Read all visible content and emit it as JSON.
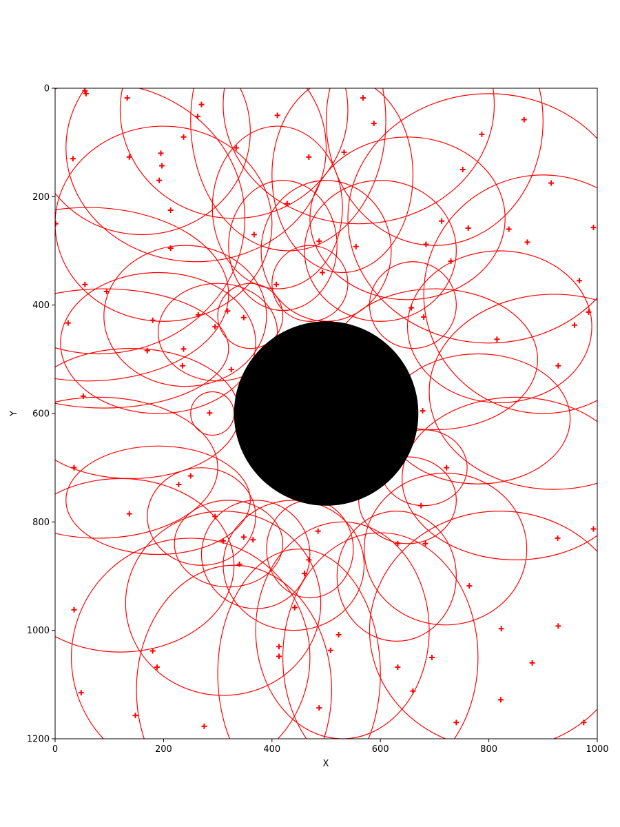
{
  "chart_data": {
    "type": "scatter",
    "title": "",
    "xlabel": "X",
    "ylabel": "Y",
    "xlim": [
      0,
      1000
    ],
    "ylim": [
      1200,
      0
    ],
    "y_inverted": true,
    "grid": false,
    "legend": "none",
    "xticks": [
      "0",
      "200",
      "400",
      "600",
      "800",
      "1000"
    ],
    "yticks": [
      "0",
      "200",
      "400",
      "600",
      "800",
      "1000",
      "1200"
    ],
    "central_disk": {
      "cx": 500,
      "cy": 600,
      "r": 170,
      "color": "#000000"
    },
    "marker": "+",
    "color": "#ff0000",
    "points": [
      {
        "x": 55,
        "y": 5
      },
      {
        "x": 57,
        "y": 10
      },
      {
        "x": 133,
        "y": 18
      },
      {
        "x": 270,
        "y": 30
      },
      {
        "x": 568,
        "y": 18
      },
      {
        "x": 263,
        "y": 52
      },
      {
        "x": 410,
        "y": 50
      },
      {
        "x": 588,
        "y": 65
      },
      {
        "x": 865,
        "y": 58
      },
      {
        "x": 787,
        "y": 85
      },
      {
        "x": 237,
        "y": 90
      },
      {
        "x": 334,
        "y": 110
      },
      {
        "x": 533,
        "y": 118
      },
      {
        "x": 195,
        "y": 120
      },
      {
        "x": 33,
        "y": 130
      },
      {
        "x": 137,
        "y": 127
      },
      {
        "x": 468,
        "y": 127
      },
      {
        "x": 197,
        "y": 143
      },
      {
        "x": 752,
        "y": 150
      },
      {
        "x": 192,
        "y": 170
      },
      {
        "x": 915,
        "y": 175
      },
      {
        "x": 428,
        "y": 213
      },
      {
        "x": 213,
        "y": 225
      },
      {
        "x": 1,
        "y": 250
      },
      {
        "x": 713,
        "y": 245
      },
      {
        "x": 762,
        "y": 258
      },
      {
        "x": 837,
        "y": 260
      },
      {
        "x": 993,
        "y": 257
      },
      {
        "x": 367,
        "y": 270
      },
      {
        "x": 487,
        "y": 282
      },
      {
        "x": 871,
        "y": 284
      },
      {
        "x": 684,
        "y": 288
      },
      {
        "x": 555,
        "y": 292
      },
      {
        "x": 213,
        "y": 295
      },
      {
        "x": 730,
        "y": 319
      },
      {
        "x": 493,
        "y": 340
      },
      {
        "x": 967,
        "y": 355
      },
      {
        "x": 55,
        "y": 362
      },
      {
        "x": 408,
        "y": 362
      },
      {
        "x": 95,
        "y": 375
      },
      {
        "x": 657,
        "y": 405
      },
      {
        "x": 318,
        "y": 411
      },
      {
        "x": 984,
        "y": 413
      },
      {
        "x": 264,
        "y": 418
      },
      {
        "x": 680,
        "y": 422
      },
      {
        "x": 348,
        "y": 423
      },
      {
        "x": 180,
        "y": 428
      },
      {
        "x": 24,
        "y": 433
      },
      {
        "x": 958,
        "y": 437
      },
      {
        "x": 295,
        "y": 440
      },
      {
        "x": 815,
        "y": 463
      },
      {
        "x": 237,
        "y": 481
      },
      {
        "x": 170,
        "y": 484
      },
      {
        "x": 235,
        "y": 512
      },
      {
        "x": 928,
        "y": 512
      },
      {
        "x": 325,
        "y": 519
      },
      {
        "x": 52,
        "y": 568
      },
      {
        "x": 678,
        "y": 595
      },
      {
        "x": 285,
        "y": 599
      },
      {
        "x": 35,
        "y": 700
      },
      {
        "x": 722,
        "y": 700
      },
      {
        "x": 250,
        "y": 715
      },
      {
        "x": 228,
        "y": 731
      },
      {
        "x": 675,
        "y": 770
      },
      {
        "x": 137,
        "y": 785
      },
      {
        "x": 295,
        "y": 790
      },
      {
        "x": 993,
        "y": 813
      },
      {
        "x": 485,
        "y": 817
      },
      {
        "x": 348,
        "y": 828
      },
      {
        "x": 927,
        "y": 830
      },
      {
        "x": 365,
        "y": 833
      },
      {
        "x": 310,
        "y": 835
      },
      {
        "x": 632,
        "y": 840
      },
      {
        "x": 683,
        "y": 840
      },
      {
        "x": 468,
        "y": 870
      },
      {
        "x": 340,
        "y": 878
      },
      {
        "x": 460,
        "y": 895
      },
      {
        "x": 764,
        "y": 918
      },
      {
        "x": 35,
        "y": 962
      },
      {
        "x": 442,
        "y": 958
      },
      {
        "x": 928,
        "y": 992
      },
      {
        "x": 823,
        "y": 997
      },
      {
        "x": 523,
        "y": 1008
      },
      {
        "x": 413,
        "y": 1030
      },
      {
        "x": 180,
        "y": 1038
      },
      {
        "x": 508,
        "y": 1037
      },
      {
        "x": 413,
        "y": 1048
      },
      {
        "x": 695,
        "y": 1050
      },
      {
        "x": 880,
        "y": 1060
      },
      {
        "x": 188,
        "y": 1068
      },
      {
        "x": 632,
        "y": 1068
      },
      {
        "x": 48,
        "y": 1115
      },
      {
        "x": 660,
        "y": 1112
      },
      {
        "x": 822,
        "y": 1128
      },
      {
        "x": 487,
        "y": 1143
      },
      {
        "x": 148,
        "y": 1157
      },
      {
        "x": 740,
        "y": 1170
      },
      {
        "x": 975,
        "y": 1170
      },
      {
        "x": 275,
        "y": 1177
      }
    ],
    "circles": [
      {
        "cx": 160,
        "cy": 80,
        "rx": 200,
        "ry": 190
      },
      {
        "cx": 260,
        "cy": 110,
        "rx": 240,
        "ry": 210
      },
      {
        "cx": 330,
        "cy": 40,
        "rx": 210,
        "ry": 200
      },
      {
        "cx": 430,
        "cy": 60,
        "rx": 180,
        "ry": 240
      },
      {
        "cx": 560,
        "cy": 30,
        "rx": 250,
        "ry": 220
      },
      {
        "cx": 700,
        "cy": 60,
        "rx": 200,
        "ry": 230
      },
      {
        "cx": 800,
        "cy": 240,
        "rx": 260,
        "ry": 230
      },
      {
        "cx": 650,
        "cy": 240,
        "rx": 180,
        "ry": 150
      },
      {
        "cx": 500,
        "cy": 300,
        "rx": 120,
        "ry": 130
      },
      {
        "cx": 420,
        "cy": 290,
        "rx": 100,
        "ry": 120
      },
      {
        "cx": 470,
        "cy": 360,
        "rx": 70,
        "ry": 70
      },
      {
        "cx": 600,
        "cy": 300,
        "rx": 140,
        "ry": 130
      },
      {
        "cx": 900,
        "cy": 380,
        "rx": 220,
        "ry": 220
      },
      {
        "cx": 820,
        "cy": 440,
        "rx": 170,
        "ry": 140
      },
      {
        "cx": 660,
        "cy": 400,
        "rx": 80,
        "ry": 80
      },
      {
        "cx": 700,
        "cy": 500,
        "rx": 190,
        "ry": 130
      },
      {
        "cx": 920,
        "cy": 560,
        "rx": 230,
        "ry": 180
      },
      {
        "cx": 780,
        "cy": 610,
        "rx": 170,
        "ry": 120
      },
      {
        "cx": 680,
        "cy": 700,
        "rx": 80,
        "ry": 70
      },
      {
        "cx": 850,
        "cy": 720,
        "rx": 210,
        "ry": 150
      },
      {
        "cx": 650,
        "cy": 760,
        "rx": 90,
        "ry": 80
      },
      {
        "cx": 720,
        "cy": 850,
        "rx": 150,
        "ry": 140
      },
      {
        "cx": 630,
        "cy": 900,
        "rx": 110,
        "ry": 120
      },
      {
        "cx": 820,
        "cy": 1000,
        "rx": 240,
        "ry": 220
      },
      {
        "cx": 600,
        "cy": 1050,
        "rx": 180,
        "ry": 230
      },
      {
        "cx": 530,
        "cy": 1000,
        "rx": 160,
        "ry": 200
      },
      {
        "cx": 450,
        "cy": 1080,
        "rx": 150,
        "ry": 230
      },
      {
        "cx": 470,
        "cy": 850,
        "rx": 80,
        "ry": 90
      },
      {
        "cx": 440,
        "cy": 880,
        "rx": 130,
        "ry": 120
      },
      {
        "cx": 370,
        "cy": 860,
        "rx": 100,
        "ry": 100
      },
      {
        "cx": 310,
        "cy": 950,
        "rx": 180,
        "ry": 170
      },
      {
        "cx": 250,
        "cy": 1050,
        "rx": 220,
        "ry": 220
      },
      {
        "cx": 330,
        "cy": 1110,
        "rx": 180,
        "ry": 230
      },
      {
        "cx": 120,
        "cy": 880,
        "rx": 210,
        "ry": 160
      },
      {
        "cx": 190,
        "cy": 760,
        "rx": 170,
        "ry": 100
      },
      {
        "cx": 270,
        "cy": 790,
        "rx": 100,
        "ry": 90
      },
      {
        "cx": 320,
        "cy": 840,
        "rx": 100,
        "ry": 80
      },
      {
        "cx": 80,
        "cy": 700,
        "rx": 220,
        "ry": 130
      },
      {
        "cx": 290,
        "cy": 600,
        "rx": 40,
        "ry": 40
      },
      {
        "cx": 140,
        "cy": 600,
        "rx": 200,
        "ry": 120
      },
      {
        "cx": 190,
        "cy": 470,
        "rx": 180,
        "ry": 130
      },
      {
        "cx": 90,
        "cy": 480,
        "rx": 230,
        "ry": 110
      },
      {
        "cx": 300,
        "cy": 450,
        "rx": 110,
        "ry": 90
      },
      {
        "cx": 240,
        "cy": 420,
        "rx": 150,
        "ry": 130
      },
      {
        "cx": 360,
        "cy": 420,
        "rx": 60,
        "ry": 60
      },
      {
        "cx": 60,
        "cy": 380,
        "rx": 260,
        "ry": 160
      },
      {
        "cx": 80,
        "cy": 240,
        "rx": 270,
        "ry": 250
      },
      {
        "cx": 200,
        "cy": 250,
        "rx": 200,
        "ry": 180
      },
      {
        "cx": 410,
        "cy": 220,
        "rx": 120,
        "ry": 150
      },
      {
        "cx": 530,
        "cy": 160,
        "rx": 130,
        "ry": 180
      }
    ]
  }
}
